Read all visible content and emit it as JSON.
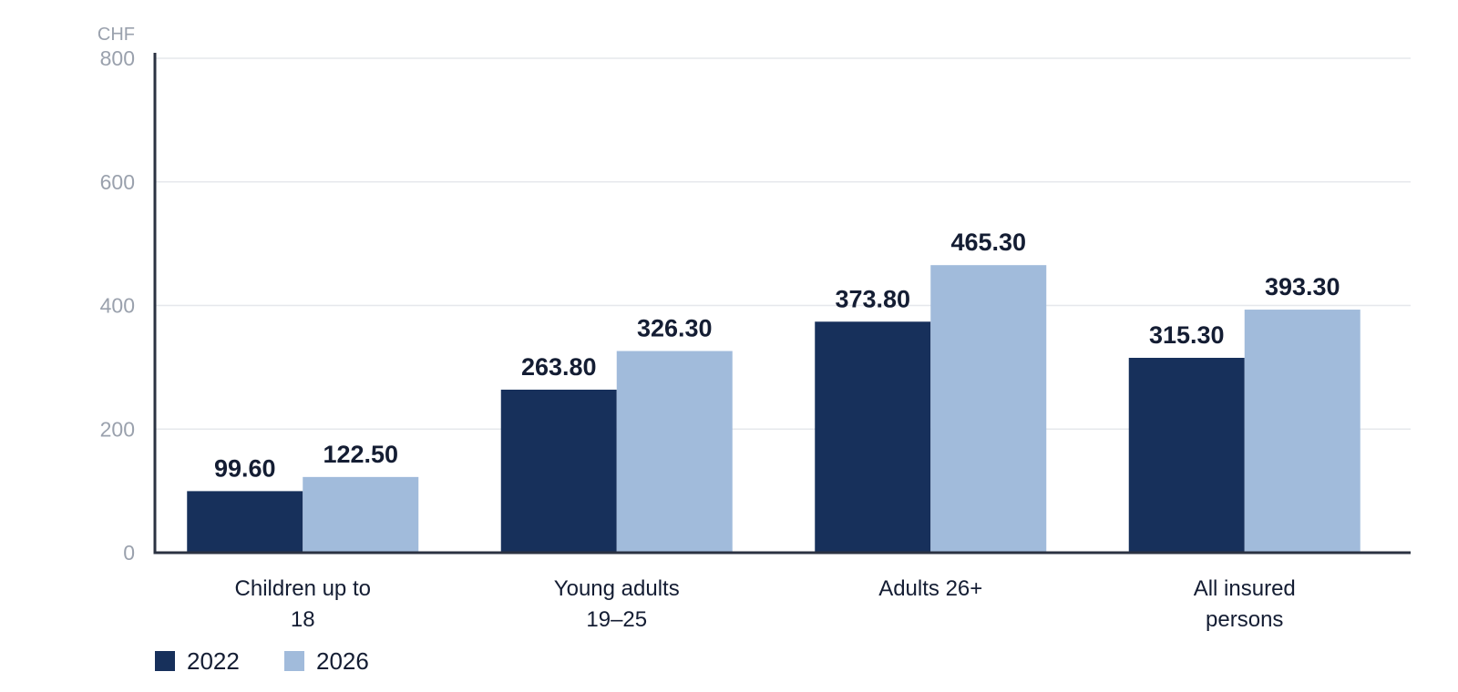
{
  "chart_data": {
    "type": "bar",
    "title": "",
    "xlabel": "",
    "ylabel": "CHF",
    "ylim": [
      0,
      800
    ],
    "yticks": [
      0,
      200,
      400,
      600,
      800
    ],
    "grid": true,
    "legend_position": "bottom-left",
    "categories": [
      [
        "Children up to",
        "18"
      ],
      [
        "Young adults",
        "19–25"
      ],
      [
        "Adults 26+"
      ],
      [
        "All insured",
        "persons"
      ]
    ],
    "series": [
      {
        "name": "2022",
        "color": "#17305b",
        "values": [
          99.6,
          263.8,
          373.8,
          315.3
        ],
        "labels": [
          "99.60",
          "263.80",
          "373.80",
          "315.30"
        ]
      },
      {
        "name": "2026",
        "color": "#a1bbdb",
        "values": [
          122.5,
          326.3,
          465.3,
          393.3
        ],
        "labels": [
          "122.50",
          "326.30",
          "465.30",
          "393.30"
        ]
      }
    ]
  }
}
